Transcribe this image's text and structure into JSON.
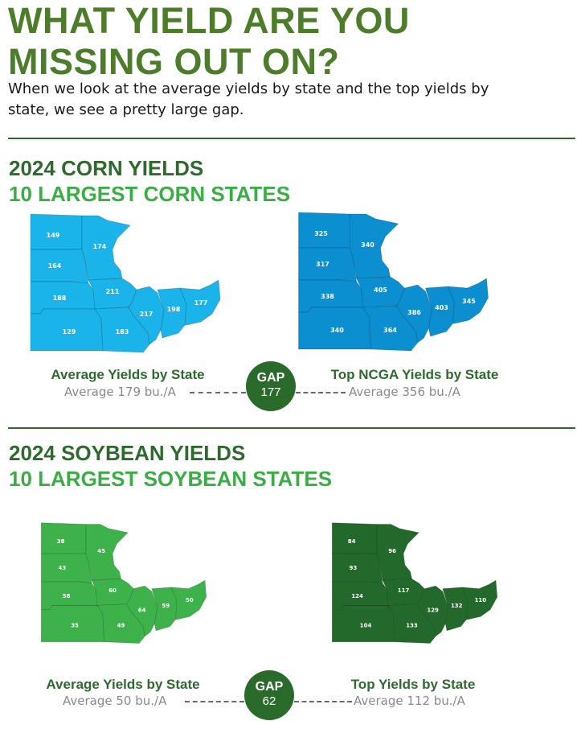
{
  "title_line1": "WHAT YIELD ARE YOU",
  "title_line2": "MISSING OUT ON?",
  "intro": "When we look at the average yields by state and the top yields by state, we see a pretty large gap.",
  "corn": {
    "title": "2024 CORN YIELDS",
    "subtitle": "10 LARGEST CORN STATES",
    "left_map": {
      "caption": "Average Yields by State",
      "avg_text": "Average 179 bu./A",
      "color": "#1ab4ea",
      "values": {
        "ND": "149",
        "MN": "174",
        "SD": "164",
        "IA": "211",
        "NE": "188",
        "IL": "217",
        "IN": "198",
        "OH": "177",
        "KS": "129",
        "MO": "183"
      }
    },
    "right_map": {
      "caption": "Top NCGA Yields by State",
      "avg_text": "Average 356 bu./A",
      "color": "#0b8fd0",
      "values": {
        "ND": "325",
        "MN": "340",
        "SD": "317",
        "IA": "405",
        "NE": "338",
        "IL": "386",
        "IN": "403",
        "OH": "345",
        "KS": "340",
        "MO": "364"
      }
    },
    "gap_label": "GAP",
    "gap_value": "177"
  },
  "soy": {
    "title": "2024 SOYBEAN YIELDS",
    "subtitle": "10 LARGEST SOYBEAN STATES",
    "left_map": {
      "caption": "Average Yields by State",
      "avg_text": "Average 50 bu./A",
      "color": "#3db24a",
      "values": {
        "ND": "38",
        "MN": "45",
        "SD": "43",
        "IA": "60",
        "NE": "58",
        "IL": "64",
        "IN": "59",
        "OH": "50",
        "KS": "35",
        "MO": "49"
      }
    },
    "right_map": {
      "caption": "Top Yields by State",
      "avg_text": "Average 112 bu./A",
      "color": "#23692c",
      "values": {
        "ND": "84",
        "MN": "96",
        "SD": "93",
        "IA": "117",
        "NE": "124",
        "IL": "129",
        "IN": "132",
        "OH": "110",
        "KS": "104",
        "MO": "133"
      }
    },
    "gap_label": "GAP",
    "gap_value": "62"
  }
}
